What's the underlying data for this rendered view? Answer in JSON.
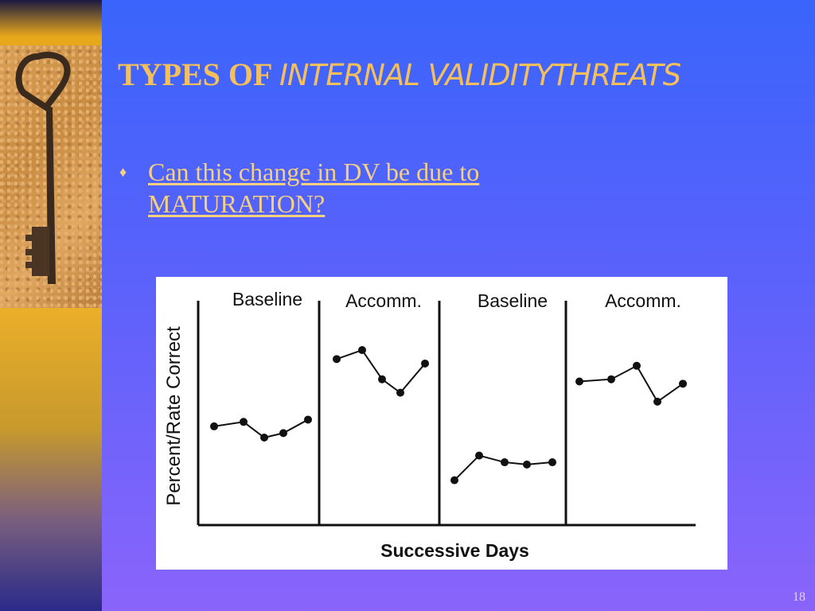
{
  "title": {
    "part1": "TYPES OF ",
    "part2": "INTERNAL VALIDITYTHREATS"
  },
  "bullet": {
    "text": "Can this change in DV be due to MATURATION?",
    "line1": "Can this change in DV be due to",
    "line2": "MATURATION?"
  },
  "slide_number": "18",
  "chart_data": {
    "type": "line",
    "title": "",
    "xlabel": "Successive Days",
    "ylabel": "Percent/Rate Correct",
    "ylim": [
      0,
      100
    ],
    "phases": [
      "Baseline",
      "Accomm.",
      "Baseline",
      "Accomm."
    ],
    "series": [
      {
        "phase": "Baseline",
        "values": [
          44,
          46,
          39,
          41,
          47
        ]
      },
      {
        "phase": "Accomm.",
        "values": [
          74,
          78,
          65,
          59,
          72
        ]
      },
      {
        "phase": "Baseline",
        "values": [
          20,
          31,
          28,
          27,
          28
        ]
      },
      {
        "phase": "Accomm.",
        "values": [
          64,
          65,
          71,
          55,
          63
        ]
      }
    ]
  }
}
